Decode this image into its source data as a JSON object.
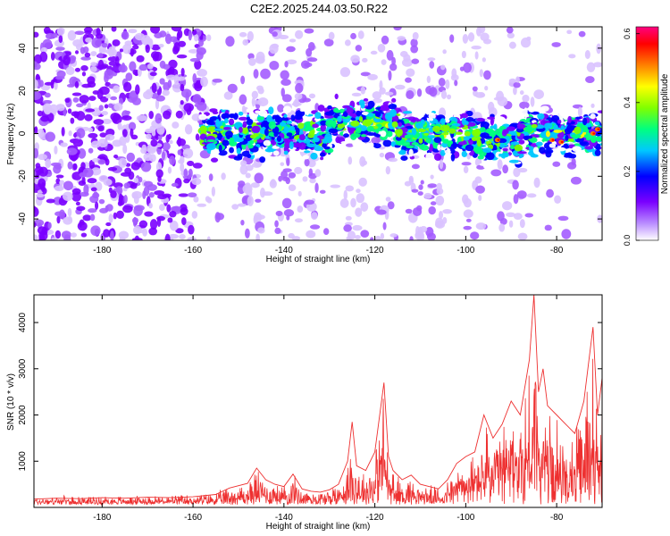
{
  "title": "C2E2.2025.244.03.50.R22",
  "chart_data": [
    {
      "type": "heatmap",
      "xlabel": "Height of straight line (km)",
      "ylabel": "Frequency (Hz)",
      "xlim": [
        -195,
        -70
      ],
      "ylim": [
        -50,
        50
      ],
      "xticks": [
        -180,
        -160,
        -140,
        -120,
        -100,
        -80
      ],
      "yticks": [
        -40,
        -20,
        0,
        20,
        40
      ],
      "colorbar": {
        "label": "Normalized spectral amplitude",
        "range": [
          0.0,
          0.62
        ],
        "ticks": [
          "0.0",
          "0.2",
          "0.4",
          "0.6"
        ],
        "tick_values": [
          0.0,
          0.2,
          0.4,
          0.6
        ],
        "colormap": [
          "#ffffff",
          "#7a00ff",
          "#0000ff",
          "#00c8ff",
          "#00ff80",
          "#80ff00",
          "#ffff00",
          "#ff8000",
          "#ff0000",
          "#ff0080"
        ]
      },
      "description_points": {
        "band_center_hz": 0,
        "band_start_km": -158,
        "noise_region_end_km": -158
      },
      "grid": false
    },
    {
      "type": "line",
      "xlabel": "Height of straight line (km)",
      "ylabel": "SNR (10 * v/v)",
      "xlim": [
        -195,
        -70
      ],
      "ylim": [
        0,
        4600
      ],
      "xticks": [
        -180,
        -160,
        -140,
        -120,
        -100,
        -80
      ],
      "yticks": [
        1000,
        2000,
        3000,
        4000
      ],
      "color": "#ee3030",
      "series": [
        {
          "x": [
            -195,
            -190,
            -185,
            -180,
            -175,
            -170,
            -165,
            -160,
            -155,
            -152,
            -148,
            -146,
            -144,
            -142,
            -140,
            -138,
            -136,
            -134,
            -132,
            -130,
            -128,
            -126,
            -125,
            -124,
            -122,
            -120,
            -118,
            -117,
            -116,
            -114,
            -112,
            -110,
            -108,
            -106,
            -104,
            -102,
            -100,
            -98,
            -96,
            -94,
            -92,
            -90,
            -88,
            -86,
            -85,
            -84,
            -83,
            -82,
            -80,
            -78,
            -76,
            -74,
            -72,
            -71,
            -70
          ],
          "y": [
            180,
            200,
            190,
            210,
            200,
            220,
            210,
            230,
            280,
            420,
            520,
            850,
            600,
            500,
            450,
            720,
            400,
            350,
            330,
            380,
            500,
            1000,
            1850,
            900,
            800,
            1200,
            2700,
            1100,
            800,
            600,
            700,
            500,
            450,
            400,
            600,
            950,
            1100,
            1200,
            2000,
            1500,
            1800,
            2300,
            2000,
            3200,
            4600,
            2500,
            3000,
            2200,
            2000,
            1800,
            1600,
            2300,
            3900,
            2000,
            2800
          ]
        }
      ],
      "grid": false
    }
  ]
}
